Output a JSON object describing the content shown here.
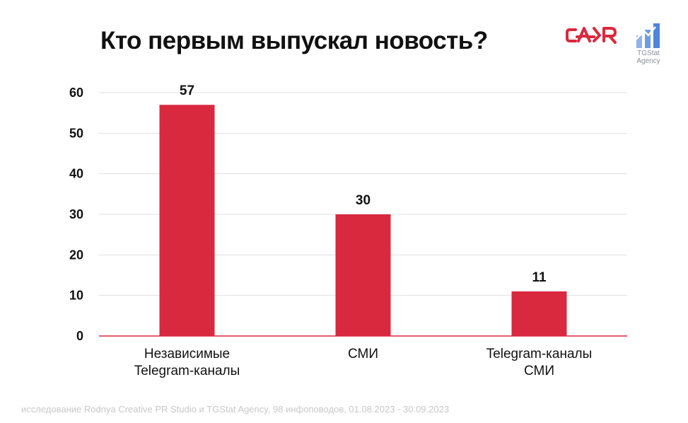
{
  "header": {
    "title": "Кто первым выпускал новость?",
    "tgstat_logo_line1": "TGStat",
    "tgstat_logo_line2": "Agency"
  },
  "chart_data": {
    "type": "bar",
    "title": "Кто первым выпускал новость?",
    "categories": [
      [
        "Независимые",
        "Telegram-каналы"
      ],
      [
        "СМИ"
      ],
      [
        "Telegram-каналы",
        "СМИ"
      ]
    ],
    "values": [
      57,
      30,
      11
    ],
    "ylim": [
      0,
      60
    ],
    "yticks": [
      0,
      10,
      20,
      30,
      40,
      50,
      60
    ],
    "grid": true,
    "bar_color": "#d9293e",
    "data_labels": [
      "57",
      "30",
      "11"
    ]
  },
  "footer": {
    "source": "исследование Rodnya Creative PR Studio и TGStat Agency, 98 инфоповодов, 01.08.2023 - 30.09.2023"
  },
  "colors": {
    "accent": "#d9293e",
    "tgstat_blue": "#5b8fd9"
  }
}
